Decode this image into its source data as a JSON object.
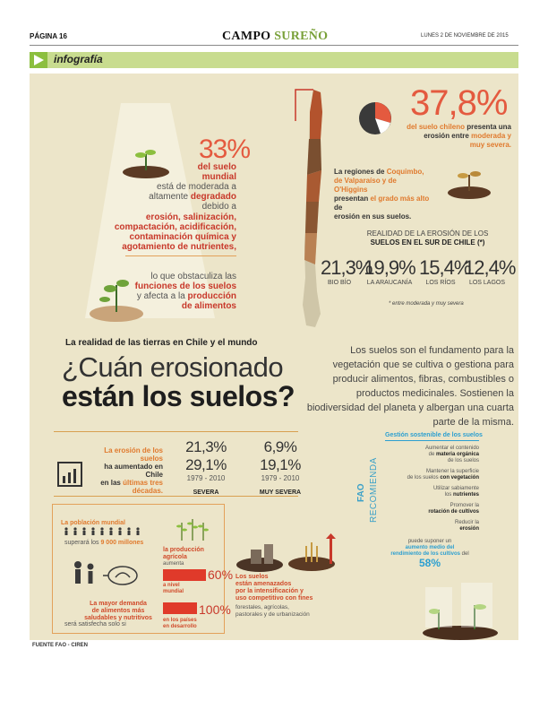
{
  "header": {
    "page": "PÁGINA 16",
    "brand_a": "CAMPO",
    "brand_b": "SUREÑO",
    "date": "LUNES 2 DE NOVIEMBRE DE 2015",
    "section": "infografía",
    "brand_color": "#7aa13a"
  },
  "left_block": {
    "pct": "33%",
    "l1": "del suelo",
    "l2": "mundial",
    "l3": "está de moderada a",
    "l4a": "altamente ",
    "l4b": "degradado",
    "l5": "debido a",
    "causes": [
      "erosión, salinización,",
      "compactación, acidificación,",
      "contaminación química y",
      "agotamiento de nutrientes,"
    ],
    "c1": "lo que obstaculiza las",
    "c2": "funciones de los suelos",
    "c3a": "y afecta a la ",
    "c3b": "producción",
    "c4": "de alimentos"
  },
  "right_block": {
    "pct": "37,8%",
    "sub1a": "del suelo chileno ",
    "sub1b": "presenta una",
    "sub2a": "erosión entre ",
    "sub2b": "moderada y",
    "sub3": "muy severa.",
    "reg1a": "La regiones de ",
    "reg1b": "Coquimbo,",
    "reg2": "de Valparaíso y de O'Higgins",
    "reg3a": "presentan ",
    "reg3b": "el grado más alto",
    "reg3c": " de",
    "reg4": "erosión en sus suelos.",
    "realidad1": "REALIDAD DE LA EROSIÓN DE LOS",
    "realidad2": "SUELOS EN EL SUR DE CHILE (*)",
    "stats": [
      {
        "value": "21,3%",
        "label": "BIO BÍO"
      },
      {
        "value": "19,9%",
        "label": "LA ARAUCANÍA"
      },
      {
        "value": "15,4%",
        "label": "LOS RÍOS"
      },
      {
        "value": "12,4%",
        "label": "LOS LAGOS"
      }
    ],
    "note": "* entre moderada y muy severa"
  },
  "title": {
    "kicker": "La realidad de las tierras en Chile y el mundo",
    "line1": "¿Cuán erosionado",
    "line2": "están los suelos?"
  },
  "body": "Los suelos son el fundamento para la vegetación que se cultiva o gestiona para producir alimentos, fibras, combustibles o productos medicinales. Sostienen la biodiversidad del planeta y albergan una cuarta parte de la misma.",
  "erosion": {
    "t1": "La erosión de los suelos",
    "t2": "ha aumentado en Chile",
    "t3a": "en las ",
    "t3b": "últimas tres",
    "t4": "décadas.",
    "sev_vals": "21,3%   29,1%",
    "sev_years": "1979 - 2010",
    "sev_label": "SEVERA",
    "msev_vals": "6,9%   19,1%",
    "msev_years": "1979 - 2010",
    "msev_label": "MUY SEVERA"
  },
  "fao": {
    "side1": "FAO",
    "side2": "RECOMIENDA",
    "title": "Gestión sostenible de los suelos",
    "i1a": "Aumentar el contenido",
    "i1b": "de ",
    "i1c": "materia orgánica",
    "i1d": "de los suelos",
    "i2a": "Mantener la superficie",
    "i2b": "de los suelos ",
    "i2c": "con vegetación",
    "i3a": "Utilizar sabiamente",
    "i3b": "los ",
    "i3c": "nutrientes",
    "i4a": "Promover la",
    "i4b": "rotación de cultivos",
    "i5a": "Reducir la",
    "i5b": "erosión",
    "i6a": "puede suponer un",
    "i6b": "aumento medio del",
    "i6c": "rendimiento de los cultivos",
    "i6d": " del",
    "i6e": "58%"
  },
  "bottom": {
    "pop1": "La población mundial",
    "pop2a": "superará los ",
    "pop2b": "9 000 millones",
    "dem1": "La mayor demanda",
    "dem2": "de alimentos más",
    "dem3": "saludables y nutritivos",
    "dem4": "será satisfecha solo si",
    "prod1": "la producción",
    "prod2": "agrícola",
    "aum": "aumenta",
    "pct60": "60%",
    "nivel1": "a nivel",
    "nivel2": "mundial",
    "pct100": "100%",
    "paises1": "en los países",
    "paises2": "en desarrollo",
    "s1": "Los suelos",
    "s2": "están amenazados",
    "s3": "por la intensificación y",
    "s4": "uso competitivo con fines",
    "s5": "forestales, agrícolas,",
    "s6": "pastorales y de urbanización"
  },
  "source": "FUENTE FAO - CIREN"
}
